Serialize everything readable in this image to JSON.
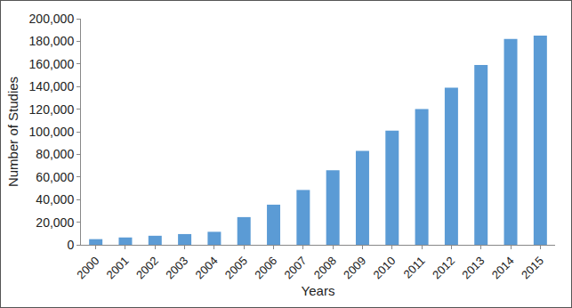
{
  "chart_data": {
    "type": "bar",
    "xlabel": "Years",
    "ylabel": "Number of Studies",
    "categories": [
      "2000",
      "2001",
      "2002",
      "2003",
      "2004",
      "2005",
      "2006",
      "2007",
      "2008",
      "2009",
      "2010",
      "2011",
      "2012",
      "2013",
      "2014",
      "2015"
    ],
    "values": [
      5000,
      6500,
      8000,
      9500,
      11500,
      24500,
      35500,
      48500,
      66000,
      83000,
      101000,
      120000,
      139000,
      159000,
      182000,
      185000
    ],
    "color": "#5b9bd5",
    "ylim": [
      0,
      200000
    ],
    "yticks": [
      0,
      {
        "value": 20000,
        "label": "20,000"
      },
      {
        "value": 40000,
        "label": "40,000"
      },
      {
        "value": 60000,
        "label": "60,000"
      },
      {
        "value": 80000,
        "label": "80,000"
      },
      {
        "value": 100000,
        "label": "100,000"
      },
      {
        "value": 120000,
        "label": "120,000"
      },
      {
        "value": 140000,
        "label": "140,000"
      },
      {
        "value": 160000,
        "label": "160,000"
      },
      {
        "value": 180000,
        "label": "180,000"
      },
      {
        "value": 200000,
        "label": "200,000"
      }
    ],
    "grid": false
  }
}
